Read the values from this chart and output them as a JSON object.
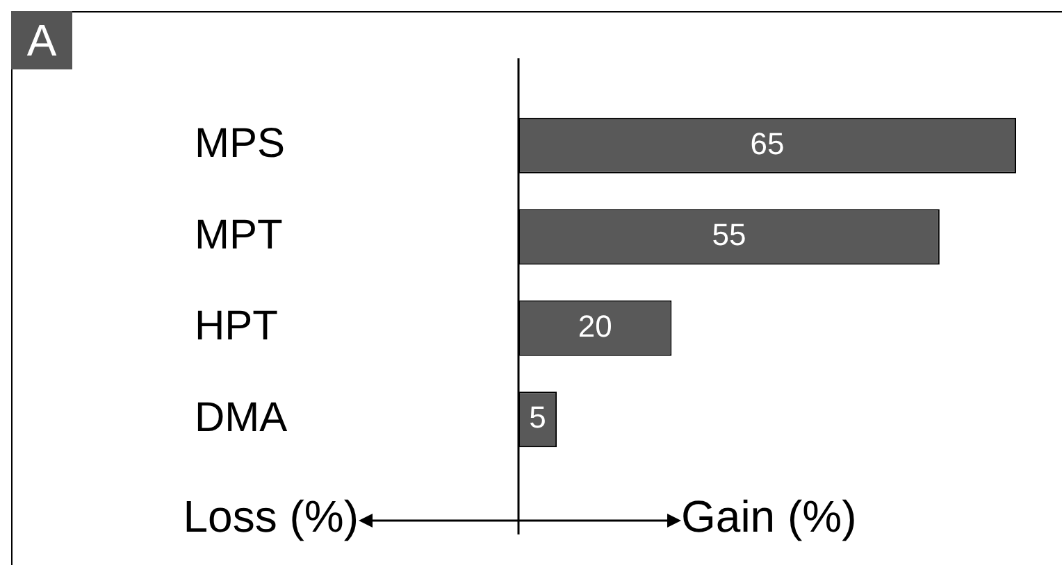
{
  "chart_data": {
    "type": "bar",
    "orientation": "horizontal",
    "categories": [
      "MPS",
      "MPT",
      "HPT",
      "DMA"
    ],
    "values": [
      65,
      55,
      20,
      5
    ],
    "color": "#595959",
    "data_labels": true,
    "grid": false,
    "legend": false,
    "annotations": [
      "A",
      "Loss (%)",
      "Gain (%)"
    ]
  }
}
